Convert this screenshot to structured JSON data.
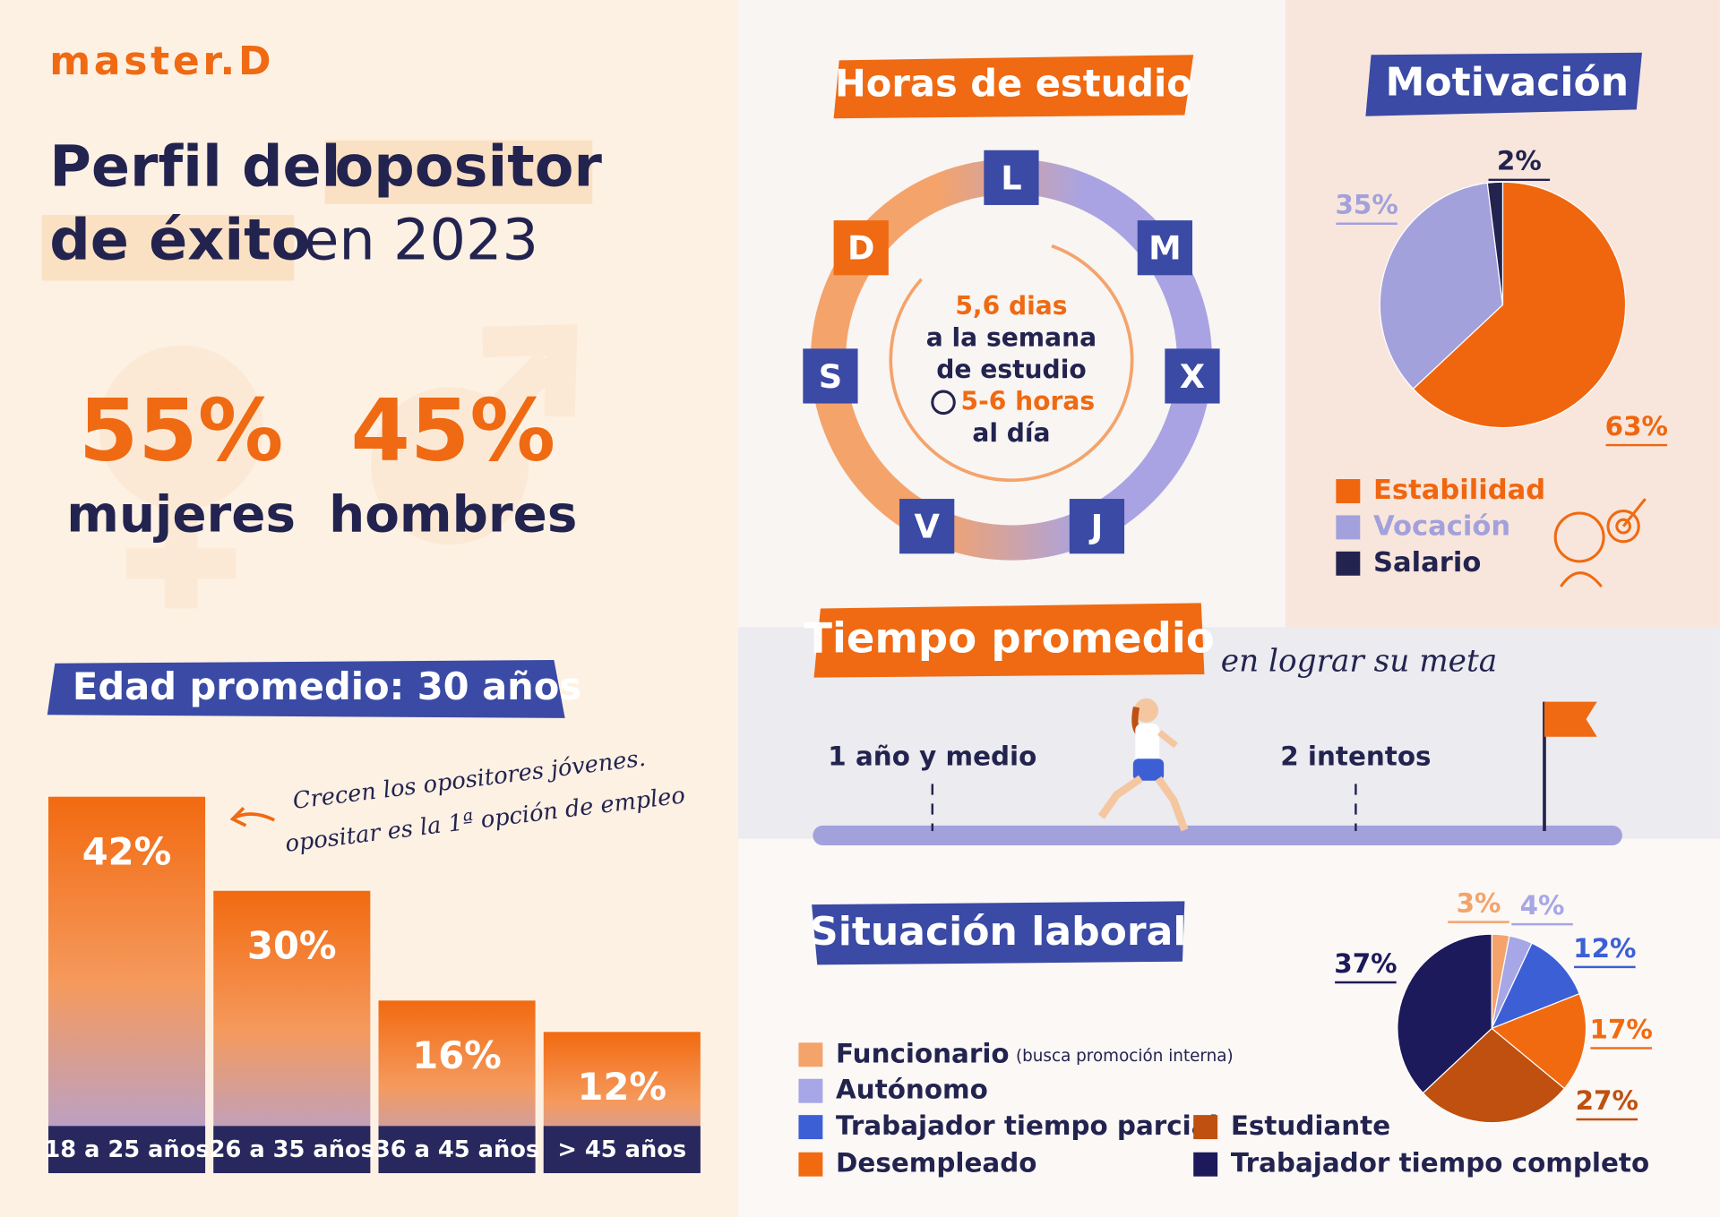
{
  "header": {
    "brand": "master.D",
    "title": [
      "Perfil del",
      "opositor",
      "de éxito",
      "en 2023"
    ]
  },
  "gender": [
    {
      "percent": "55%",
      "label": "mujeres"
    },
    {
      "percent": "45%",
      "label": "hombres"
    }
  ],
  "study_hours": {
    "title": "Horas de estudio",
    "days": [
      "L",
      "M",
      "X",
      "J",
      "V",
      "S",
      "D"
    ],
    "center": [
      "5,6 dias",
      "a la semana",
      "de estudio",
      "5-6 horas",
      "al día"
    ]
  },
  "average_time": {
    "title": "Tiempo promedio",
    "subtitle": "en lograr su meta",
    "milestones": [
      "1 año y medio",
      "2 intentos"
    ]
  },
  "chart_data": [
    {
      "type": "bar",
      "title": "Edad promedio: 30 años",
      "annotation": [
        "Crecen los opositores jóvenes.",
        "opositar es la 1ª opción de empleo"
      ],
      "categories": [
        "18 a 25 años",
        "26 a 35 años",
        "36 a 45 años",
        "> 45 años"
      ],
      "values": [
        42,
        30,
        16,
        12
      ],
      "value_labels": [
        "42%",
        "30%",
        "16%",
        "12%"
      ],
      "color": "#f26a10"
    },
    {
      "type": "pie",
      "title": "Motivación",
      "categories": [
        "Estabilidad",
        "Vocación",
        "Salario"
      ],
      "values": [
        63,
        35,
        2
      ],
      "value_labels": [
        "63%",
        "35%",
        "2%"
      ],
      "colors": [
        "#f0660f",
        "#a3a1dc",
        "#23234f"
      ]
    },
    {
      "type": "pie",
      "title": "Situación laboral",
      "categories": [
        "Funcionario",
        "Autónomo",
        "Trabajador tiempo parcial",
        "Desempleado",
        "Estudiante",
        "Trabajador tiempo completo"
      ],
      "legend_note": "(busca promoción interna)",
      "values": [
        3,
        4,
        12,
        17,
        27,
        37
      ],
      "value_labels": [
        "3%",
        "4%",
        "12%",
        "17%",
        "27%",
        "37%"
      ],
      "colors": [
        "#f4a36b",
        "#a7a6e6",
        "#3d5fd6",
        "#f26a10",
        "#c0500f",
        "#1c1a5a"
      ]
    }
  ]
}
